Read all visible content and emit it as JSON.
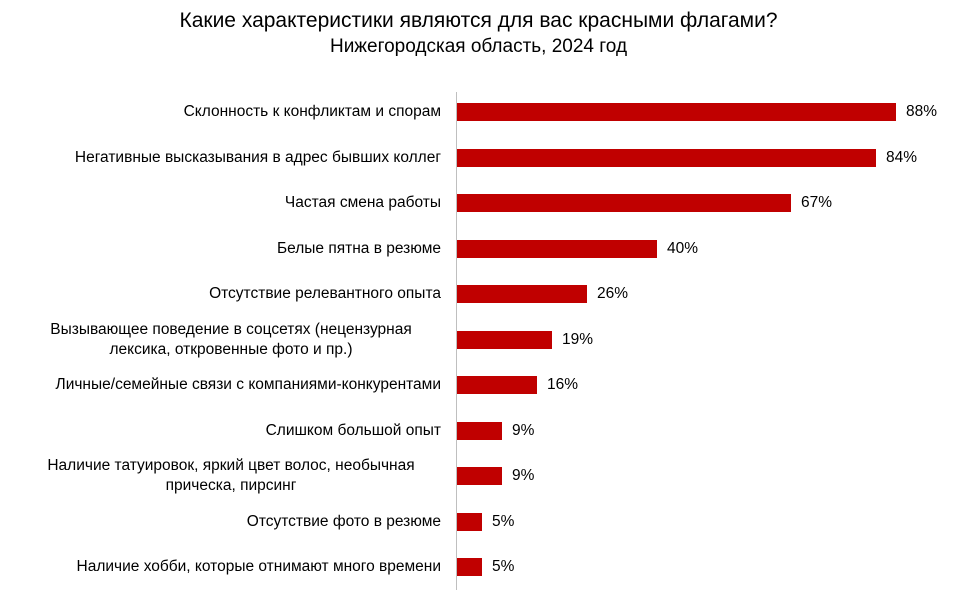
{
  "header": {
    "title": "Какие характеристики являются для вас красными флагами?",
    "subtitle": "Нижегородская область, 2024 год"
  },
  "colors": {
    "bar": "#c00000",
    "axis": "#bfbfbf"
  },
  "chart_data": {
    "type": "bar",
    "orientation": "horizontal",
    "title": "Какие характеристики являются для вас красными флагами?",
    "subtitle": "Нижегородская область, 2024 год",
    "xlabel": "",
    "ylabel": "",
    "xlim": [
      0,
      100
    ],
    "grid": false,
    "legend": null,
    "categories": [
      "Склонность к конфликтам и спорам",
      "Негативные высказывания в адрес бывших коллег",
      "Частая смена работы",
      "Белые пятна в резюме",
      "Отсутствие релевантного опыта",
      "Вызывающее поведение в соцсетях (нецензурная лексика, откровенные фото и пр.)",
      "Личные/семейные связи с компаниями-конкурентами",
      "Слишком большой опыт",
      "Наличие татуировок, яркий цвет волос, необычная прическа, пирсинг",
      "Отсутствие фото в резюме",
      "Наличие хобби, которые отнимают много времени"
    ],
    "values": [
      88,
      84,
      67,
      40,
      26,
      19,
      16,
      9,
      9,
      5,
      5
    ],
    "value_labels": [
      "88%",
      "84%",
      "67%",
      "40%",
      "26%",
      "19%",
      "16%",
      "9%",
      "9%",
      "5%",
      "5%"
    ],
    "unit": "%"
  },
  "rows": [
    {
      "label": "Склонность к конфликтам и спорам",
      "value": 88,
      "value_label": "88%"
    },
    {
      "label": "Негативные высказывания в адрес бывших коллег",
      "value": 84,
      "value_label": "84%"
    },
    {
      "label": "Частая смена работы",
      "value": 67,
      "value_label": "67%"
    },
    {
      "label": "Белые пятна в резюме",
      "value": 40,
      "value_label": "40%"
    },
    {
      "label": "Отсутствие релевантного опыта",
      "value": 26,
      "value_label": "26%"
    },
    {
      "label": "Вызывающее поведение в соцсетях (нецензурная лексика, откровенные фото и пр.)",
      "value": 19,
      "value_label": "19%"
    },
    {
      "label": "Личные/семейные связи с компаниями-конкурентами",
      "value": 16,
      "value_label": "16%"
    },
    {
      "label": "Слишком большой опыт",
      "value": 9,
      "value_label": "9%"
    },
    {
      "label": "Наличие татуировок, яркий цвет волос, необычная прическа, пирсинг",
      "value": 9,
      "value_label": "9%"
    },
    {
      "label": "Отсутствие фото в резюме",
      "value": 5,
      "value_label": "5%"
    },
    {
      "label": "Наличие хобби, которые отнимают много времени",
      "value": 5,
      "value_label": "5%"
    }
  ]
}
